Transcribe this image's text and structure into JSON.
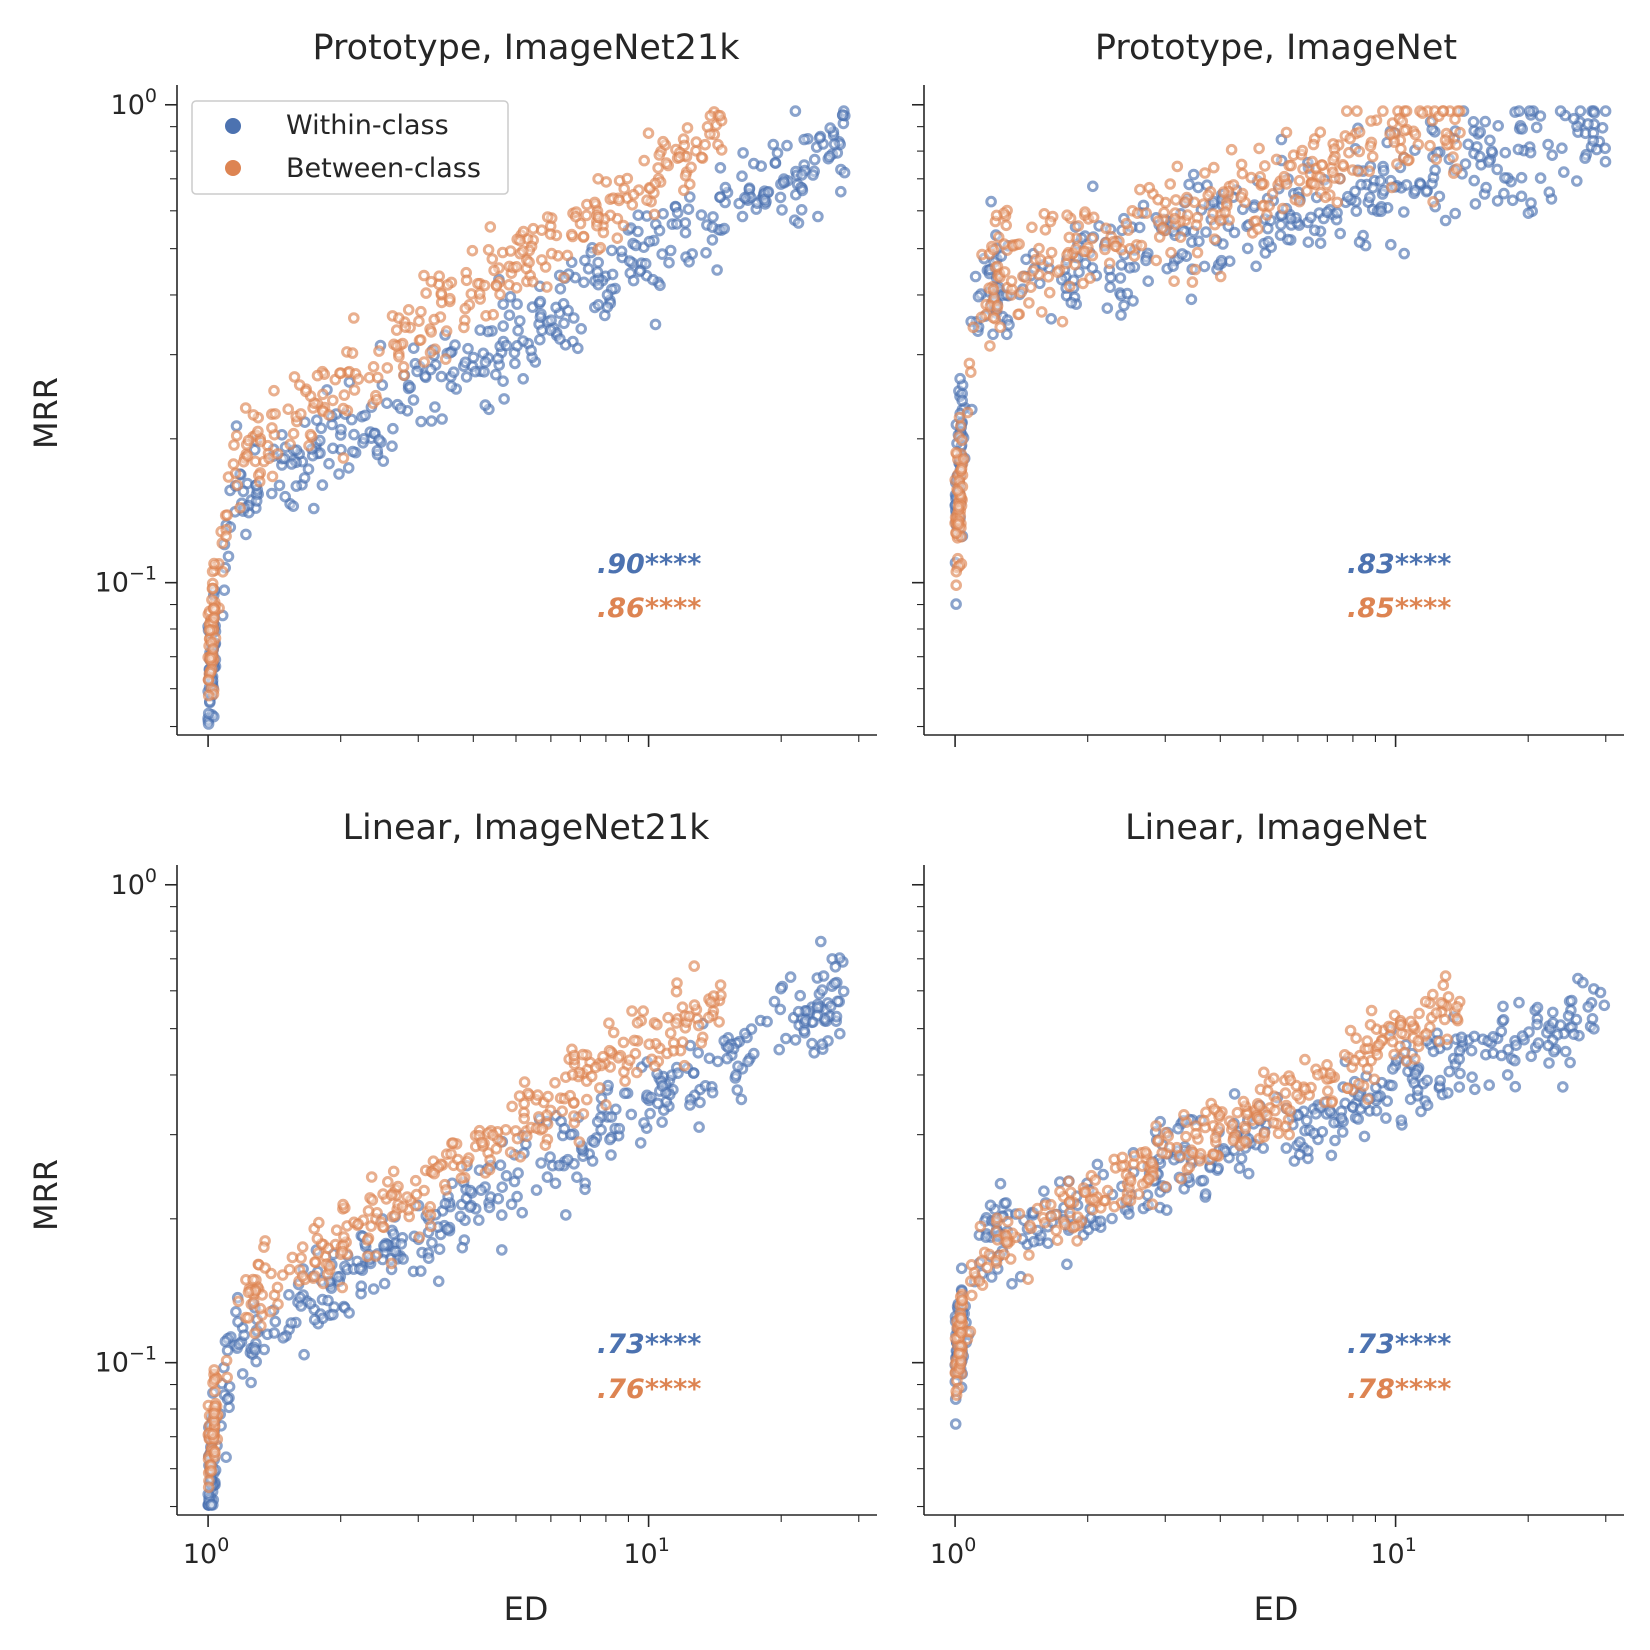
{
  "colors": {
    "within": "#4c72b0",
    "between": "#dd8452",
    "axis": "#262626"
  },
  "legend": {
    "placement": "upper-left",
    "items": [
      {
        "label": "Within-class",
        "color": "#4c72b0"
      },
      {
        "label": "Between-class",
        "color": "#dd8452"
      }
    ]
  },
  "chart_data": [
    {
      "type": "scatter",
      "title": "Prototype, ImageNet21k",
      "xlabel": "",
      "ylabel": "MRR",
      "xscale": "log",
      "yscale": "log",
      "xlim": [
        0.85,
        33
      ],
      "ylim": [
        0.048,
        1.1
      ],
      "xticks": [
        {
          "base": "10",
          "exp": "0"
        },
        {
          "base": "10",
          "exp": "1"
        }
      ],
      "yticks": [
        {
          "base": "10",
          "exp": "0"
        },
        {
          "base": "10",
          "exp": "−1"
        }
      ],
      "show_xticklabels": false,
      "show_yticklabels": true,
      "show_legend": true,
      "annotations": [
        {
          "text": ".90",
          "stars": "****",
          "series": "Within-class"
        },
        {
          "text": ".86",
          "stars": "****",
          "series": "Between-class"
        }
      ],
      "series": [
        {
          "name": "Within-class",
          "params": {
            "seed": 11,
            "n": 430,
            "x_max": 28,
            "y_start": 0.06,
            "y_knee": 0.15,
            "y_end": 0.85,
            "spread": 0.17
          }
        },
        {
          "name": "Between-class",
          "params": {
            "seed": 12,
            "n": 340,
            "x_max": 15,
            "y_start": 0.07,
            "y_knee": 0.18,
            "y_end": 0.9,
            "spread": 0.16
          }
        }
      ]
    },
    {
      "type": "scatter",
      "title": "Prototype, ImageNet",
      "xlabel": "",
      "ylabel": "",
      "xscale": "log",
      "yscale": "log",
      "xlim": [
        0.85,
        33
      ],
      "ylim": [
        0.048,
        1.1
      ],
      "xticks": [
        {
          "base": "10",
          "exp": "0"
        },
        {
          "base": "10",
          "exp": "1"
        }
      ],
      "yticks": [
        {
          "base": "10",
          "exp": "0"
        },
        {
          "base": "10",
          "exp": "−1"
        }
      ],
      "show_xticklabels": false,
      "show_yticklabels": false,
      "show_legend": false,
      "annotations": [
        {
          "text": ".83",
          "stars": "****",
          "series": "Within-class"
        },
        {
          "text": ".85",
          "stars": "****",
          "series": "Between-class"
        }
      ],
      "series": [
        {
          "name": "Within-class",
          "params": {
            "seed": 21,
            "n": 430,
            "x_max": 30,
            "y_start": 0.15,
            "y_knee": 0.4,
            "y_end": 0.9,
            "spread": 0.2
          }
        },
        {
          "name": "Between-class",
          "params": {
            "seed": 22,
            "n": 360,
            "x_max": 14,
            "y_start": 0.13,
            "y_knee": 0.42,
            "y_end": 0.92,
            "spread": 0.18
          }
        }
      ]
    },
    {
      "type": "scatter",
      "title": "Linear, ImageNet21k",
      "xlabel": "ED",
      "ylabel": "MRR",
      "xscale": "log",
      "yscale": "log",
      "xlim": [
        0.85,
        33
      ],
      "ylim": [
        0.048,
        1.1
      ],
      "xticks": [
        {
          "base": "10",
          "exp": "0"
        },
        {
          "base": "10",
          "exp": "1"
        }
      ],
      "yticks": [
        {
          "base": "10",
          "exp": "0"
        },
        {
          "base": "10",
          "exp": "−1"
        }
      ],
      "show_xticklabels": true,
      "show_yticklabels": true,
      "show_legend": false,
      "annotations": [
        {
          "text": ".73",
          "stars": "****",
          "series": "Within-class"
        },
        {
          "text": ".76",
          "stars": "****",
          "series": "Between-class"
        }
      ],
      "series": [
        {
          "name": "Within-class",
          "params": {
            "seed": 31,
            "n": 430,
            "x_max": 28,
            "y_start": 0.055,
            "y_knee": 0.11,
            "y_end": 0.6,
            "spread": 0.15
          }
        },
        {
          "name": "Between-class",
          "params": {
            "seed": 32,
            "n": 340,
            "x_max": 15,
            "y_start": 0.06,
            "y_knee": 0.13,
            "y_end": 0.6,
            "spread": 0.14
          }
        }
      ]
    },
    {
      "type": "scatter",
      "title": "Linear, ImageNet",
      "xlabel": "ED",
      "ylabel": "",
      "xscale": "log",
      "yscale": "log",
      "xlim": [
        0.85,
        33
      ],
      "ylim": [
        0.048,
        1.1
      ],
      "xticks": [
        {
          "base": "10",
          "exp": "0"
        },
        {
          "base": "10",
          "exp": "1"
        }
      ],
      "yticks": [
        {
          "base": "10",
          "exp": "0"
        },
        {
          "base": "10",
          "exp": "−1"
        }
      ],
      "show_xticklabels": true,
      "show_yticklabels": false,
      "show_legend": false,
      "annotations": [
        {
          "text": ".73",
          "stars": "****",
          "series": "Within-class"
        },
        {
          "text": ".78",
          "stars": "****",
          "series": "Between-class"
        }
      ],
      "series": [
        {
          "name": "Within-class",
          "params": {
            "seed": 41,
            "n": 430,
            "x_max": 30,
            "y_start": 0.1,
            "y_knee": 0.18,
            "y_end": 0.55,
            "spread": 0.15
          }
        },
        {
          "name": "Between-class",
          "params": {
            "seed": 42,
            "n": 360,
            "x_max": 14,
            "y_start": 0.1,
            "y_knee": 0.17,
            "y_end": 0.55,
            "spread": 0.13
          }
        }
      ]
    }
  ]
}
